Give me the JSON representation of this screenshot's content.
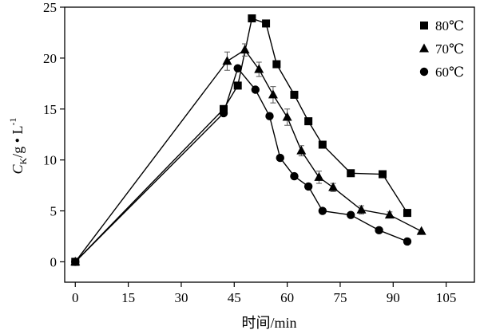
{
  "chart_data": {
    "type": "line",
    "xlabel": "时间/min",
    "ylabel": {
      "main": "C",
      "sub": "K",
      "rest": "/g • L",
      "sup": "-1"
    },
    "xlim": [
      -3,
      113
    ],
    "ylim": [
      -2,
      25
    ],
    "xticks": [
      0,
      15,
      30,
      45,
      60,
      75,
      90,
      105
    ],
    "yticks": [
      0,
      5,
      10,
      15,
      20,
      25
    ],
    "legend_position": "top-right",
    "grid": false,
    "series": [
      {
        "name": "80℃",
        "marker": "square",
        "x": [
          0,
          42,
          46,
          50,
          54,
          57,
          62,
          66,
          70,
          78,
          87,
          94
        ],
        "y": [
          0,
          15.0,
          17.3,
          23.9,
          23.4,
          19.4,
          16.4,
          13.8,
          11.5,
          8.7,
          8.6,
          4.8
        ]
      },
      {
        "name": "70℃",
        "marker": "triangle",
        "x": [
          0,
          43,
          48,
          52,
          56,
          60,
          64,
          69,
          73,
          81,
          89,
          98
        ],
        "y": [
          0,
          19.7,
          20.8,
          18.9,
          16.4,
          14.2,
          10.9,
          8.3,
          7.3,
          5.1,
          4.6,
          3.0
        ],
        "error": [
          0,
          0.9,
          0.6,
          0.7,
          0.8,
          0.8,
          0.5,
          0.6,
          0.4,
          0.4,
          0.3,
          0
        ]
      },
      {
        "name": "60℃",
        "marker": "circle",
        "x": [
          0,
          42,
          46,
          51,
          55,
          58,
          62,
          66,
          70,
          78,
          86,
          94
        ],
        "y": [
          0,
          14.6,
          19.0,
          16.9,
          14.3,
          10.2,
          8.4,
          7.4,
          5.0,
          4.6,
          3.1,
          2.0
        ]
      }
    ]
  }
}
